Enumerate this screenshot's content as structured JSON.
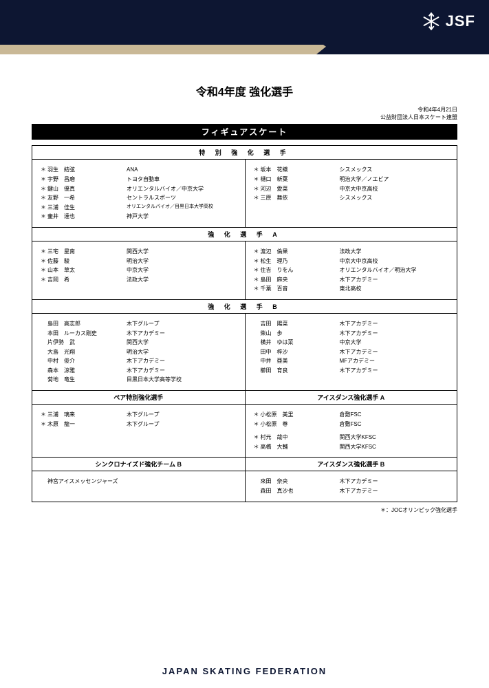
{
  "header": {
    "brand": "JSF",
    "footer": "JAPAN SKATING FEDERATION"
  },
  "doc": {
    "title": "令和4年度 強化選手",
    "date": "令和4年4月21日",
    "org": "公益財団法人日本スケート連盟",
    "discipline": "フィギュアスケート",
    "footnote": "＊：JOCオリンピック強化選手"
  },
  "sections": [
    {
      "header": "特 別 強 化 選 手",
      "left": [
        {
          "s": "＊",
          "n": "羽生　結弦",
          "a": "ANA"
        },
        {
          "s": "＊",
          "n": "宇野　昌磨",
          "a": "トヨタ自動車"
        },
        {
          "s": "＊",
          "n": "鍵山　優真",
          "a": "オリエンタルバイオ／中京大学"
        },
        {
          "s": "＊",
          "n": "友野　一希",
          "a": "セントラルスポーツ"
        },
        {
          "s": "＊",
          "n": "三浦　佳生",
          "a": "オリエンタルバイオ／目黒日本大学高校",
          "small": true
        },
        {
          "s": "＊",
          "n": "壷井　達也",
          "a": "神戸大学"
        }
      ],
      "right": [
        {
          "s": "＊",
          "n": "坂本　花織",
          "a": "シスメックス"
        },
        {
          "s": "＊",
          "n": "樋口　新葉",
          "a": "明治大学／ノエビア"
        },
        {
          "s": "＊",
          "n": "河辺　愛菜",
          "a": "中京大中京高校"
        },
        {
          "s": "＊",
          "n": "三原　舞依",
          "a": "シスメックス"
        }
      ]
    },
    {
      "header": "強 化 選 手 A",
      "left": [
        {
          "s": "＊",
          "n": "三宅　星南",
          "a": "関西大学"
        },
        {
          "s": "＊",
          "n": "佐藤　駿",
          "a": "明治大学"
        },
        {
          "s": "＊",
          "n": "山本　草太",
          "a": "中京大学"
        },
        {
          "s": "＊",
          "n": "吉岡　希",
          "a": "法政大学"
        }
      ],
      "right": [
        {
          "s": "＊",
          "n": "渡辺　倫果",
          "a": "法政大学"
        },
        {
          "s": "＊",
          "n": "松生　理乃",
          "a": "中京大中京高校"
        },
        {
          "s": "＊",
          "n": "住吉　りをん",
          "a": "オリエンタルバイオ／明治大学"
        },
        {
          "s": "＊",
          "n": "島田　麻央",
          "a": "木下アカデミー"
        },
        {
          "s": "＊",
          "n": "千葉　百音",
          "a": "東北高校"
        }
      ]
    },
    {
      "header": "強 化 選 手 B",
      "left": [
        {
          "s": "",
          "n": "島田　高志郎",
          "a": "木下グループ"
        },
        {
          "s": "",
          "n": "本田　ルーカス剛史",
          "a": "木下アカデミー"
        },
        {
          "s": "",
          "n": "片伊勢　武",
          "a": "関西大学"
        },
        {
          "s": "",
          "n": "大島　光翔",
          "a": "明治大学"
        },
        {
          "s": "",
          "n": "中村　俊介",
          "a": "木下アカデミー"
        },
        {
          "s": "",
          "n": "森本　涼雅",
          "a": "木下アカデミー"
        },
        {
          "s": "",
          "n": "菊地　竜生",
          "a": "目黒日本大学高等学校"
        }
      ],
      "right": [
        {
          "s": "",
          "n": "吉田　陽菜",
          "a": "木下アカデミー"
        },
        {
          "s": "",
          "n": "柴山　歩",
          "a": "木下アカデミー"
        },
        {
          "s": "",
          "n": "横井　ゆは菜",
          "a": "中京大学"
        },
        {
          "s": "",
          "n": "田中　梓沙",
          "a": "木下アカデミー"
        },
        {
          "s": "",
          "n": "中井　亜美",
          "a": "MFアカデミー"
        },
        {
          "s": "",
          "n": "櫛田　育良",
          "a": "木下アカデミー"
        }
      ]
    }
  ],
  "pair_block": {
    "headers": [
      "ペア特別強化選手",
      "アイスダンス強化選手 A"
    ],
    "left": [
      {
        "s": "＊",
        "n": "三浦　璃来",
        "a": "木下グループ"
      },
      {
        "s": "＊",
        "n": "木原　龍一",
        "a": "木下グループ"
      }
    ],
    "right_a": [
      {
        "s": "＊",
        "n": "小松原　美里",
        "a": "倉敷FSC"
      },
      {
        "s": "＊",
        "n": "小松原　尊",
        "a": "倉敷FSC"
      }
    ],
    "right_b": [
      {
        "s": "＊",
        "n": "村元　哉中",
        "a": "関西大学KFSC"
      },
      {
        "s": "＊",
        "n": "高橋　大輔",
        "a": "関西大学KFSC"
      }
    ]
  },
  "sync_block": {
    "headers": [
      "シンクロナイズド強化チーム B",
      "アイスダンス強化選手 B"
    ],
    "left": [
      {
        "s": "",
        "n": "神宮アイスメッセンジャーズ",
        "a": ""
      }
    ],
    "right": [
      {
        "s": "",
        "n": "來田　奈央",
        "a": "木下アカデミー"
      },
      {
        "s": "",
        "n": "森田　真沙也",
        "a": "木下アカデミー"
      }
    ]
  }
}
